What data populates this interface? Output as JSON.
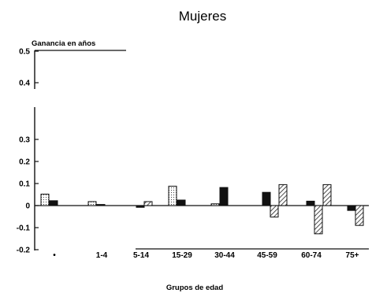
{
  "chart_data": {
    "type": "bar",
    "title": "Mujeres",
    "ylabel": "Ganancia en años",
    "xlabel": "Grupos de edad",
    "categories": [
      "0",
      "1-4",
      "5-14",
      "15-29",
      "30-44",
      "45-59",
      "60-74",
      "75+"
    ],
    "category_labels": [
      "•",
      "1-4",
      "5-14",
      "15-29",
      "30-44",
      "45-59",
      "60-74",
      "75+"
    ],
    "ylim": [
      -0.2,
      0.5
    ],
    "axis_break": [
      0.32,
      0.38
    ],
    "yticks": [
      "0.5",
      "0.4",
      "0.3",
      "0.2",
      "0.1",
      "0",
      "-0.1",
      "-0.2"
    ],
    "ytick_values": [
      0.5,
      0.4,
      0.3,
      0.2,
      0.1,
      0,
      -0.1,
      -0.2
    ],
    "legend": "none",
    "grid": false,
    "series": [
      {
        "style": "dotted",
        "values": [
          0.052,
          0.018,
          0.0,
          0.088,
          0.008,
          0.0,
          0.0,
          0.0
        ]
      },
      {
        "style": "solid-black",
        "values": [
          0.022,
          0.005,
          -0.008,
          0.025,
          0.082,
          0.06,
          0.02,
          -0.022
        ]
      },
      {
        "style": "hatched",
        "values": [
          0.0,
          0.0,
          0.018,
          0.0,
          0.0,
          -0.052,
          -0.128,
          -0.09
        ]
      },
      {
        "style": "hatched",
        "values": [
          0.0,
          0.0,
          0.0,
          0.0,
          0.0,
          0.095,
          0.095,
          0.0
        ]
      }
    ]
  }
}
